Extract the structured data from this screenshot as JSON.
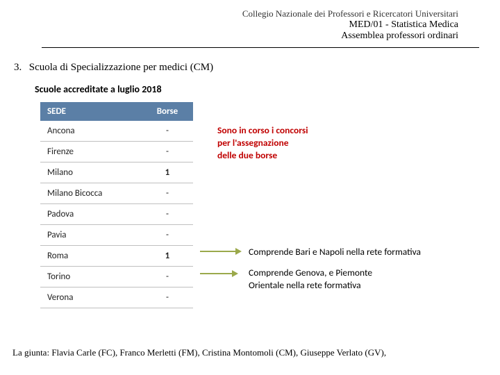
{
  "header": {
    "line1": "Collegio Nazionale dei Professori e Ricercatori Universitari",
    "line2": "MED/01 - Statistica Medica",
    "line3": "Assemblea professori ordinari"
  },
  "section": {
    "number": "3.",
    "title": "Scuola di Specializzazione per medici (CM)"
  },
  "subtitle": "Scuole accreditate a luglio 2018",
  "table": {
    "columns": [
      "SEDE",
      "Borse"
    ],
    "rows": [
      [
        "Ancona",
        "-"
      ],
      [
        "Firenze",
        "-"
      ],
      [
        "Milano",
        "1"
      ],
      [
        "Milano Bicocca",
        "-"
      ],
      [
        "Padova",
        "-"
      ],
      [
        "Pavia",
        "-"
      ],
      [
        "Roma",
        "1"
      ],
      [
        "Torino",
        "-"
      ],
      [
        "Verona",
        "-"
      ]
    ],
    "header_bg": "#5b7fa6",
    "header_fg": "#ffffff",
    "row_border": "#bfbfbf"
  },
  "notes": {
    "note1_l1": "Sono in corso i concorsi",
    "note1_l2": "per l'assegnazione",
    "note1_l3": "delle due borse",
    "note2": "Comprende Bari e Napoli nella rete formativa",
    "note3_l1": "Comprende Genova, e Piemonte",
    "note3_l2": "Orientale  nella rete formativa"
  },
  "colors": {
    "note1": "#c00000",
    "arrow": "#9ba94b"
  },
  "footer": "La giunta: Flavia Carle (FC), Franco Merletti (FM), Cristina Montomoli (CM), Giuseppe Verlato (GV),"
}
